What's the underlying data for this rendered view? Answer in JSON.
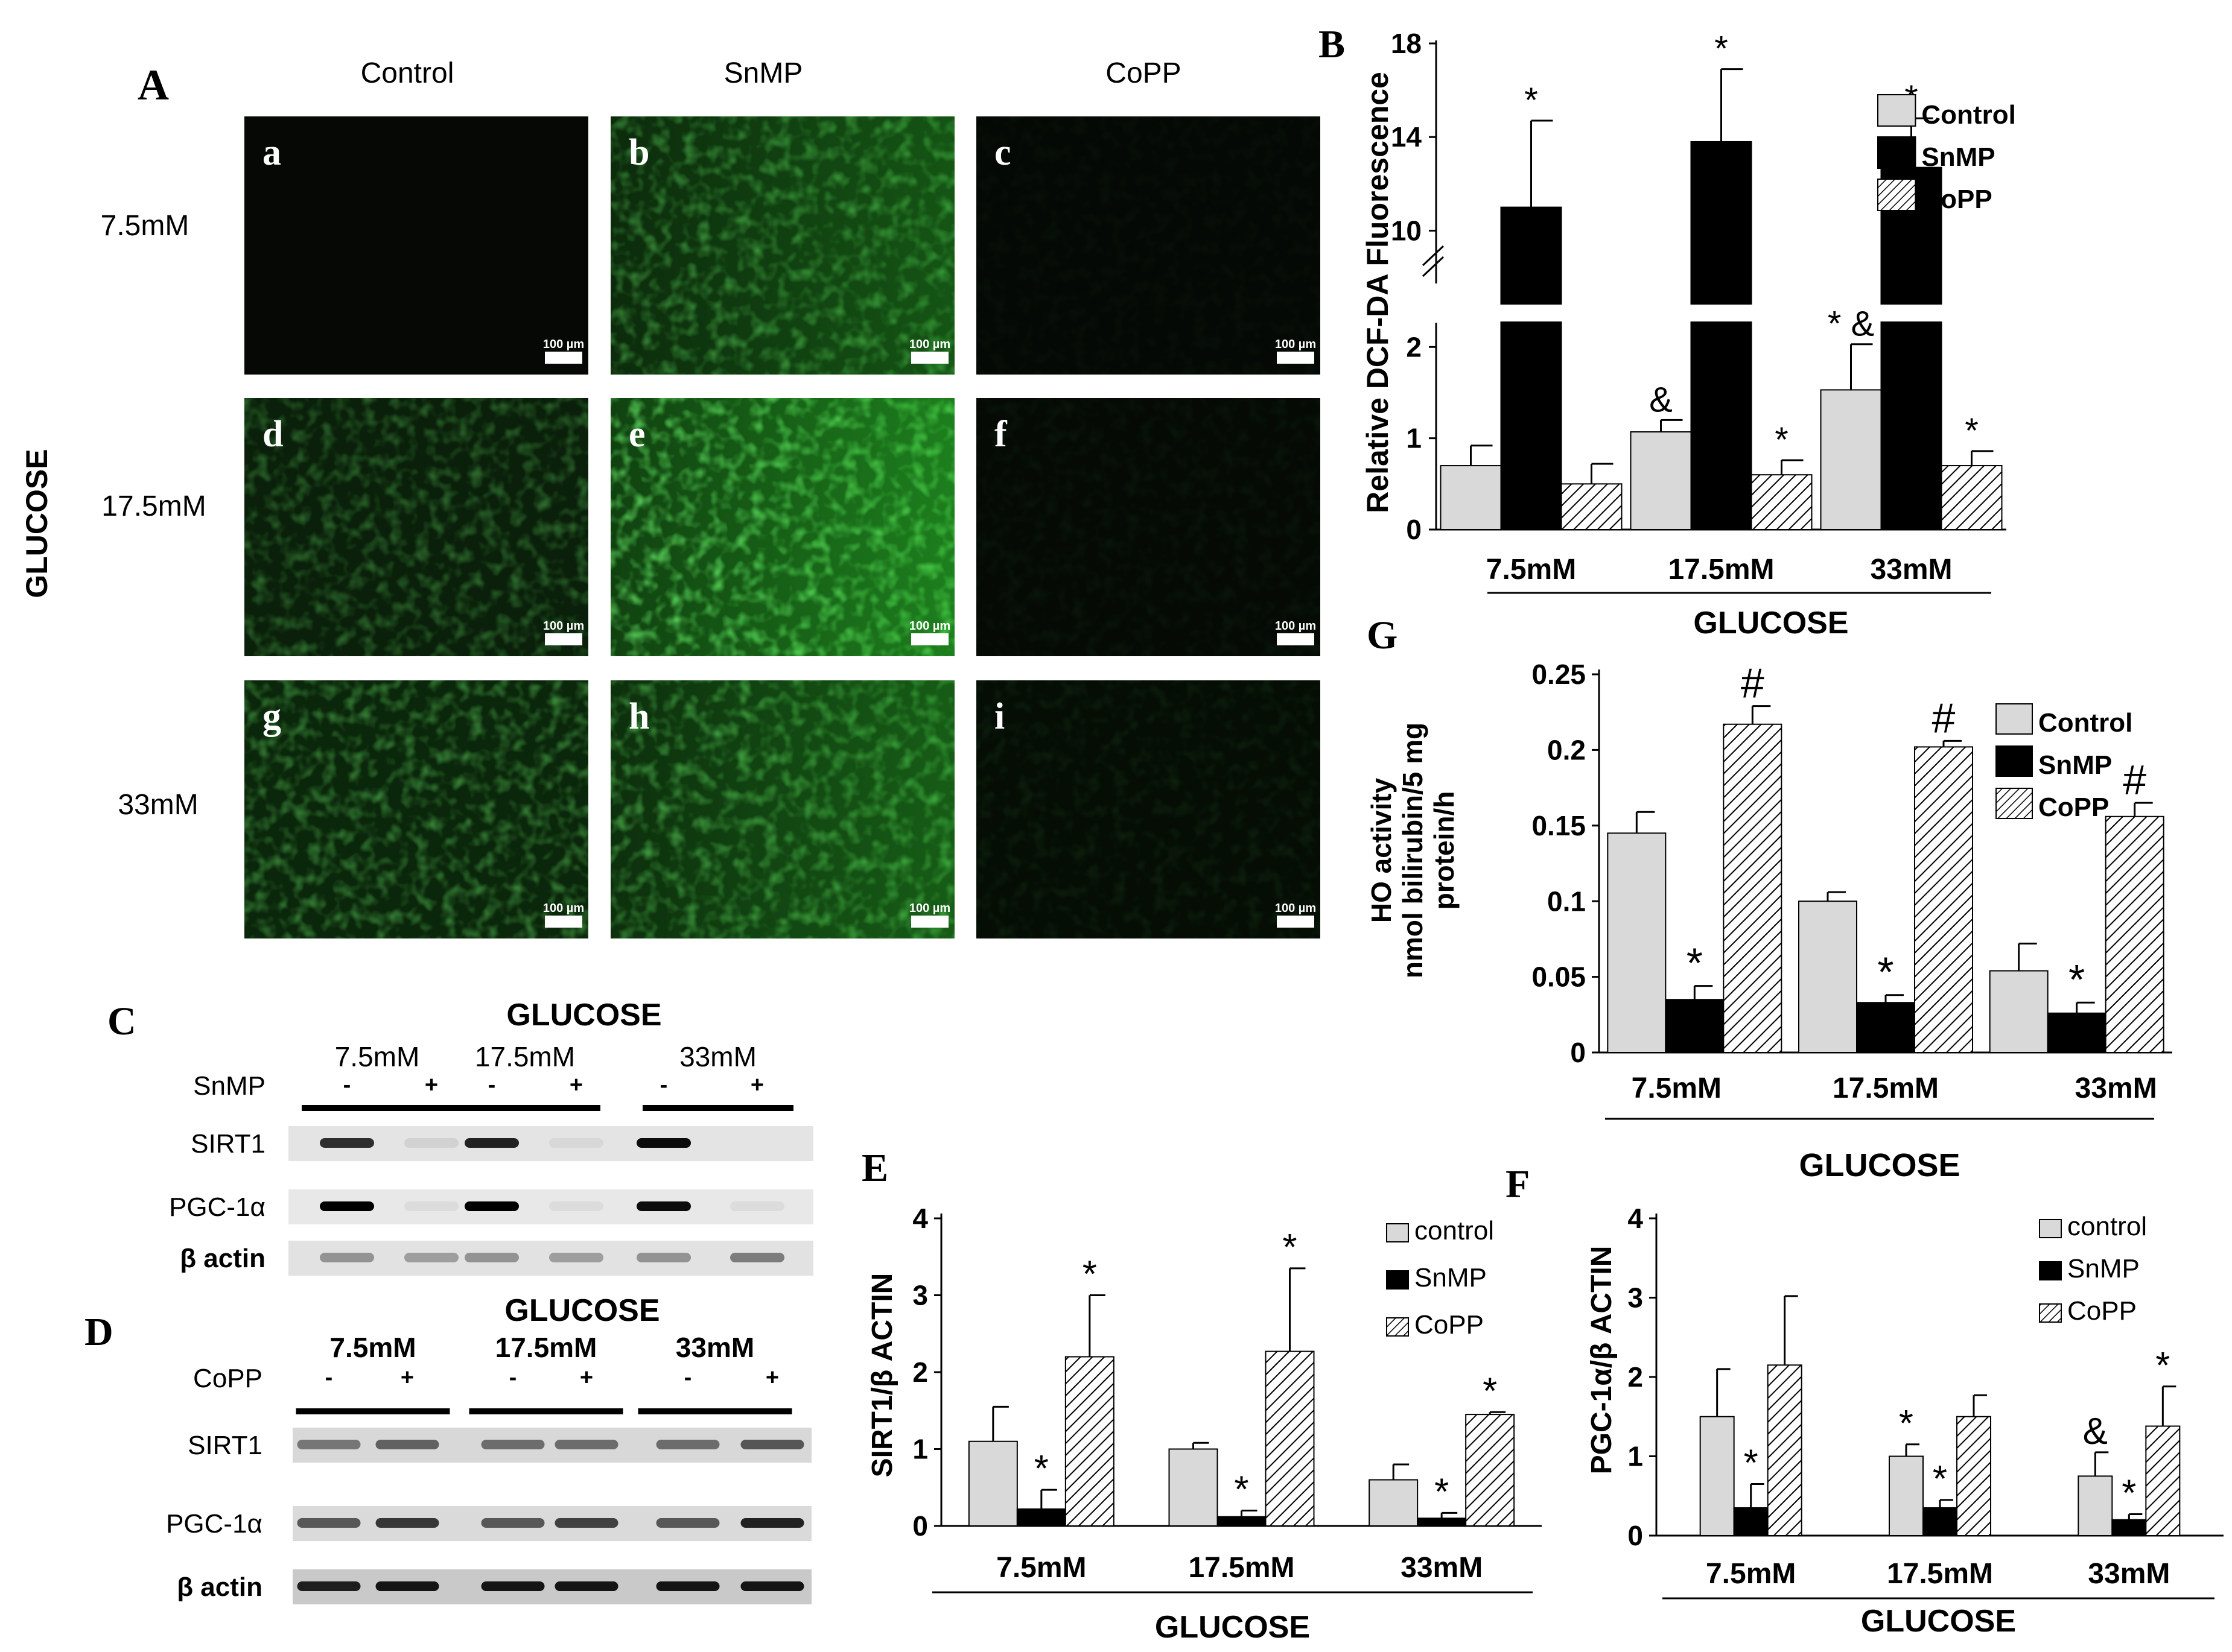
{
  "figure": {
    "panel_letters": {
      "A": "A",
      "B": "B",
      "C": "C",
      "D": "D",
      "E": "E",
      "F": "F",
      "G": "G"
    },
    "colors": {
      "control": "#d9d9d9",
      "snmp": "#000000",
      "copp": "hatched",
      "fluor_dark": "#050805",
      "fluor_bright": "#2fd12f"
    }
  },
  "panel_a": {
    "column_headers": [
      "Control",
      "SnMP",
      "CoPP"
    ],
    "row_headers": [
      "7.5mM",
      "17.5mM",
      "33mM"
    ],
    "side_label": "GLUCOSE",
    "scale_bar": "100 µm",
    "tiles": [
      {
        "letter": "a",
        "intensity": 0.0
      },
      {
        "letter": "b",
        "intensity": 0.45
      },
      {
        "letter": "c",
        "intensity": 0.03
      },
      {
        "letter": "d",
        "intensity": 0.35
      },
      {
        "letter": "e",
        "intensity": 0.75
      },
      {
        "letter": "f",
        "intensity": 0.05
      },
      {
        "letter": "g",
        "intensity": 0.45
      },
      {
        "letter": "h",
        "intensity": 0.5
      },
      {
        "letter": "i",
        "intensity": 0.08
      }
    ]
  },
  "blot_c": {
    "title": "GLUCOSE",
    "groups": [
      "7.5mM",
      "17.5mM",
      "33mM"
    ],
    "treatment": "SnMP",
    "signs": [
      "-",
      "+",
      "-",
      "+",
      "-",
      "+"
    ],
    "rows": [
      "SIRT1",
      "PGC-1α",
      "β actin"
    ]
  },
  "blot_d": {
    "title": "GLUCOSE",
    "groups": [
      "7.5mM",
      "17.5mM",
      "33mM"
    ],
    "treatment": "CoPP",
    "signs": [
      "-",
      "+",
      "-",
      "+",
      "-",
      "+"
    ],
    "rows": [
      "SIRT1",
      "PGC-1α",
      "β actin"
    ]
  },
  "chart_data": [
    {
      "panel": "B",
      "type": "bar",
      "ylabel": "Relative DCF-DA Fluorescence",
      "xlabel": "GLUCOSE",
      "categories": [
        "7.5mM",
        "17.5mM",
        "33mM"
      ],
      "ylim_lower": [
        0,
        2.2
      ],
      "ylim_upper": [
        8,
        18
      ],
      "yticks_lower": [
        "0",
        "1",
        "2"
      ],
      "yticks_upper": [
        "10",
        "14",
        "18"
      ],
      "legend": [
        "Control",
        "SnMP",
        "CoPP"
      ],
      "legend_position": "top-right",
      "series": [
        {
          "name": "Control",
          "values": [
            0.7,
            1.07,
            1.53
          ],
          "errors": [
            0.22,
            0.13,
            0.5
          ],
          "marks": [
            "",
            "&",
            "* &"
          ]
        },
        {
          "name": "SnMP",
          "values": [
            11.0,
            13.8,
            12.7
          ],
          "errors": [
            3.7,
            3.1,
            2.1
          ],
          "marks": [
            "*",
            "*",
            "*"
          ]
        },
        {
          "name": "CoPP",
          "values": [
            0.5,
            0.6,
            0.7
          ],
          "errors": [
            0.22,
            0.16,
            0.16
          ],
          "marks": [
            "",
            "*",
            "*"
          ]
        }
      ]
    },
    {
      "panel": "G",
      "type": "bar",
      "ylabel_lines": [
        "HO  activity",
        "nmol bilirubin/5 mg",
        "protein/h"
      ],
      "xlabel": "GLUCOSE",
      "categories": [
        "7.5mM",
        "17.5mM",
        "33mM"
      ],
      "ylim": [
        0,
        0.25
      ],
      "yticks": [
        "0",
        "0.05",
        "0.1",
        "0.15",
        "0.2",
        "0.25"
      ],
      "legend": [
        "Control",
        "SnMP",
        "CoPP"
      ],
      "legend_position": "top-right",
      "series": [
        {
          "name": "Control",
          "values": [
            0.145,
            0.1,
            0.054
          ],
          "errors": [
            0.014,
            0.006,
            0.018
          ],
          "marks": [
            "",
            "",
            ""
          ]
        },
        {
          "name": "SnMP",
          "values": [
            0.035,
            0.033,
            0.026
          ],
          "errors": [
            0.009,
            0.005,
            0.007
          ],
          "marks": [
            "*",
            "*",
            "*"
          ]
        },
        {
          "name": "CoPP",
          "values": [
            0.217,
            0.202,
            0.156
          ],
          "errors": [
            0.012,
            0.004,
            0.009
          ],
          "marks": [
            "#",
            "#",
            "#"
          ]
        }
      ]
    },
    {
      "panel": "E",
      "type": "bar",
      "ylabel": "SIRT1/β ACTIN",
      "xlabel": "GLUCOSE",
      "categories": [
        "7.5mM",
        "17.5mM",
        "33mM"
      ],
      "ylim": [
        0,
        4
      ],
      "yticks": [
        "0",
        "1",
        "2",
        "3",
        "4"
      ],
      "legend": [
        "control",
        "SnMP",
        "CoPP"
      ],
      "legend_position": "top-right",
      "series": [
        {
          "name": "control",
          "values": [
            1.1,
            1.0,
            0.6
          ],
          "errors": [
            0.45,
            0.08,
            0.2
          ],
          "marks": [
            "",
            "",
            ""
          ]
        },
        {
          "name": "SnMP",
          "values": [
            0.22,
            0.12,
            0.1
          ],
          "errors": [
            0.25,
            0.08,
            0.07
          ],
          "marks": [
            "*",
            "*",
            "*"
          ]
        },
        {
          "name": "CoPP",
          "values": [
            2.2,
            2.27,
            1.45
          ],
          "errors": [
            0.8,
            1.08,
            0.03
          ],
          "marks": [
            "*",
            "*",
            "*"
          ]
        }
      ]
    },
    {
      "panel": "F",
      "type": "bar",
      "ylabel": "PGC-1α/β ACTIN",
      "xlabel": "GLUCOSE",
      "categories": [
        "7.5mM",
        "17.5mM",
        "33mM"
      ],
      "ylim": [
        0,
        4
      ],
      "yticks": [
        "0",
        "1",
        "2",
        "3",
        "4"
      ],
      "legend": [
        "control",
        "SnMP",
        "CoPP"
      ],
      "legend_position": "top-right",
      "series": [
        {
          "name": "control",
          "values": [
            1.5,
            1.0,
            0.75
          ],
          "errors": [
            0.6,
            0.15,
            0.3
          ],
          "marks": [
            "",
            "*",
            "&"
          ]
        },
        {
          "name": "SnMP",
          "values": [
            0.35,
            0.35,
            0.2
          ],
          "errors": [
            0.3,
            0.1,
            0.07
          ],
          "marks": [
            "*",
            "*",
            "*"
          ]
        },
        {
          "name": "CoPP",
          "values": [
            2.15,
            1.5,
            1.38
          ],
          "errors": [
            0.87,
            0.27,
            0.5
          ],
          "marks": [
            "",
            "",
            "*"
          ]
        }
      ]
    }
  ]
}
